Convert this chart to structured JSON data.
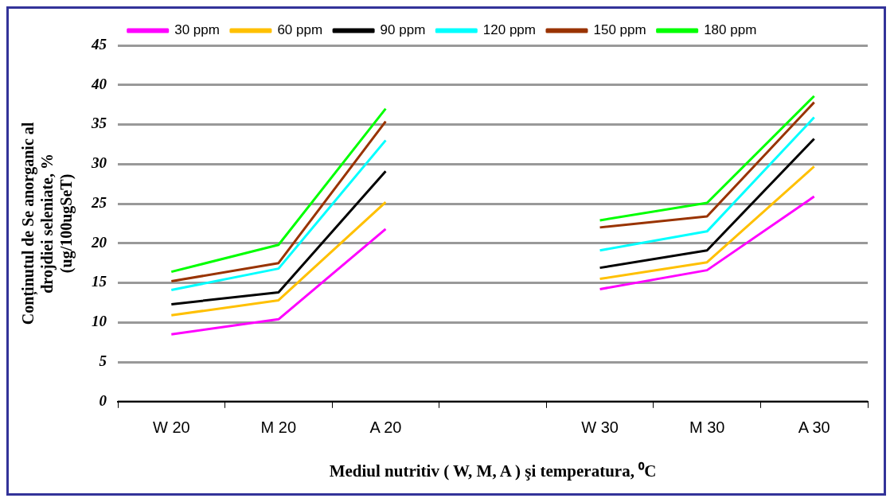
{
  "chart_data": {
    "type": "line",
    "xlabel": "Mediul nutritiv ( W, M, A ) şi temperatura, ⁰C",
    "ylabel": "Conținutul de Se anorganic al\ndrojdiei seleniate, %\n(ug/100ugSeT)",
    "categories": [
      "W 20",
      "M 20",
      "A 20",
      null,
      "W 30",
      "M 30",
      "A 30"
    ],
    "series": [
      {
        "name": "30 ppm",
        "color": "#ff00ff",
        "values": [
          8.5,
          10.4,
          21.8,
          null,
          14.2,
          16.6,
          25.9
        ]
      },
      {
        "name": "60 ppm",
        "color": "#ffc000",
        "values": [
          10.9,
          12.8,
          25.2,
          null,
          15.5,
          17.6,
          29.7
        ]
      },
      {
        "name": "90 ppm",
        "color": "#000000",
        "values": [
          12.3,
          13.8,
          29.1,
          null,
          16.9,
          19.1,
          33.2
        ]
      },
      {
        "name": "120 ppm",
        "color": "#00ffff",
        "values": [
          14.1,
          16.8,
          33,
          null,
          19.1,
          21.5,
          35.9
        ]
      },
      {
        "name": "150 ppm",
        "color": "#993300",
        "values": [
          15.2,
          17.5,
          35.4,
          null,
          22,
          23.4,
          37.8
        ]
      },
      {
        "name": "180 ppm",
        "color": "#00ff00",
        "values": [
          16.4,
          19.8,
          37,
          null,
          22.9,
          25.1,
          38.6
        ]
      }
    ],
    "ylim": [
      0,
      45
    ],
    "yticks": [
      0,
      5,
      10,
      15,
      20,
      25,
      30,
      35,
      40,
      45
    ],
    "grid": "y",
    "legend": "top",
    "marker": "none",
    "line_style": "solid"
  }
}
